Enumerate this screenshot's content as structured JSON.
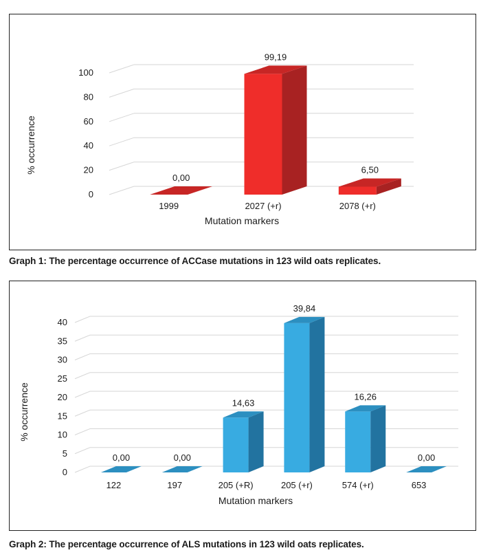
{
  "charts": [
    {
      "caption": "Graph 1: The percentage occurrence of ACCase mutations in 123 wild oats replicates.",
      "chart_data": {
        "type": "bar",
        "categories": [
          "1999",
          "2027 (+r)",
          "2078 (+r)"
        ],
        "values": [
          0.0,
          99.19,
          6.5
        ],
        "data_labels": [
          "0,00",
          "99,19",
          "6,50"
        ],
        "yticks": [
          0,
          20,
          40,
          60,
          80,
          100
        ],
        "ylim": [
          0,
          100
        ],
        "xlabel": "Mutation markers",
        "ylabel": "% occurrence",
        "grid": true,
        "colors": {
          "front": "#ef2d2a",
          "side": "#a82222",
          "top": "#c72625"
        }
      }
    },
    {
      "caption": "Graph 2: The percentage occurrence of ALS mutations in 123 wild oats replicates.",
      "chart_data": {
        "type": "bar",
        "categories": [
          "122",
          "197",
          "205 (+R)",
          "205 (+r)",
          "574 (+r)",
          "653"
        ],
        "values": [
          0.0,
          0.0,
          14.63,
          39.84,
          16.26,
          0.0
        ],
        "data_labels": [
          "0,00",
          "0,00",
          "14,63",
          "39,84",
          "16,26",
          "0,00"
        ],
        "yticks": [
          0,
          5,
          10,
          15,
          20,
          25,
          30,
          35,
          40
        ],
        "ylim": [
          0,
          40
        ],
        "xlabel": "Mutation markers",
        "ylabel": "% occurrence",
        "grid": true,
        "colors": {
          "front": "#38abe1",
          "side": "#2273a0",
          "top": "#2c8fc0"
        }
      }
    }
  ]
}
